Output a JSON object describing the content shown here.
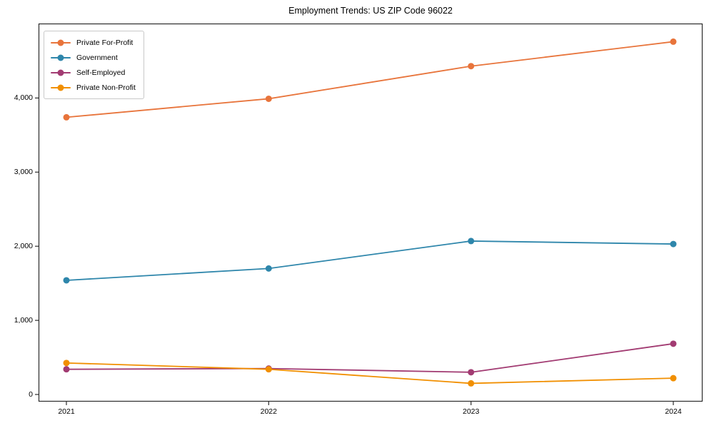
{
  "title": "Employment Trends: US ZIP Code 96022",
  "chart_data": {
    "type": "line",
    "title": "Employment Trends: US ZIP Code 96022",
    "xlabel": "",
    "ylabel": "",
    "x": [
      "2021",
      "2022",
      "2023",
      "2024"
    ],
    "series": [
      {
        "name": "Private For-Profit",
        "color": "#E8743B",
        "values": [
          3740,
          3990,
          4430,
          4760
        ]
      },
      {
        "name": "Government",
        "color": "#2E86AB",
        "values": [
          1540,
          1700,
          2070,
          2030
        ]
      },
      {
        "name": "Self-Employed",
        "color": "#A23B72",
        "values": [
          340,
          350,
          300,
          685
        ]
      },
      {
        "name": "Private Non-Profit",
        "color": "#F18F01",
        "values": [
          425,
          340,
          150,
          220
        ]
      }
    ],
    "yticks": {
      "values": [
        0,
        1000,
        2000,
        3000,
        4000
      ],
      "labels": [
        "0",
        "1,000",
        "2,000",
        "3,000",
        "4,000"
      ]
    },
    "xticks": [
      "2021",
      "2022",
      "2023",
      "2024"
    ],
    "ylim": [
      -95,
      5010
    ],
    "grid": false,
    "legend_position": "upper-left",
    "marker": "circle",
    "axis_color": "#2b2b2b"
  },
  "legend": {
    "items": [
      "Private For-Profit",
      "Government",
      "Self-Employed",
      "Private Non-Profit"
    ]
  }
}
